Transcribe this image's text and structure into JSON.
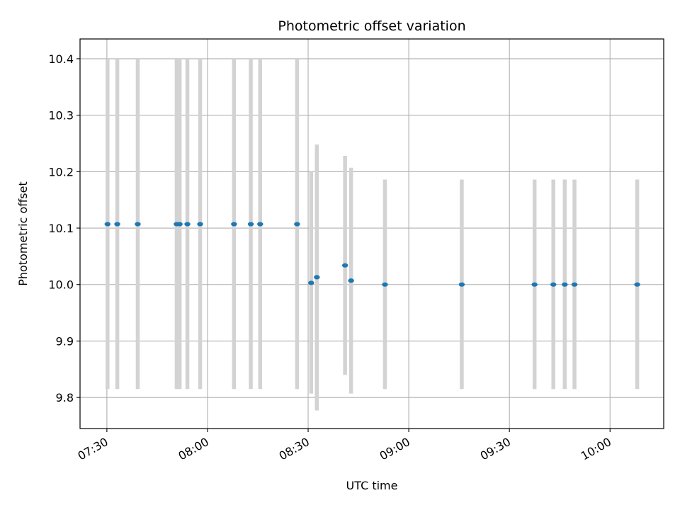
{
  "chart_data": {
    "type": "scatter",
    "title": "Photometric offset variation",
    "xlabel": "UTC time",
    "ylabel": "Photometric offset",
    "grid": true,
    "xlim": [
      "07:22",
      "10:16"
    ],
    "ylim": [
      9.745,
      10.435
    ],
    "x_ticks": [
      "07:30",
      "08:00",
      "08:30",
      "09:00",
      "09:30",
      "10:00"
    ],
    "y_ticks": [
      "9.8",
      "9.9",
      "10.0",
      "10.1",
      "10.2",
      "10.3",
      "10.4"
    ],
    "colors": {
      "points": "#1f77b4",
      "error_bars": "#d3d3d3",
      "grid": "#b0b0b0"
    },
    "points": [
      {
        "x": "07:30:12",
        "y": 10.107,
        "yerr_low": 9.815,
        "yerr_high": 10.4
      },
      {
        "x": "07:33:06",
        "y": 10.107,
        "yerr_low": 9.815,
        "yerr_high": 10.4
      },
      {
        "x": "07:39:12",
        "y": 10.107,
        "yerr_low": 9.815,
        "yerr_high": 10.4
      },
      {
        "x": "07:50:48",
        "y": 10.107,
        "yerr_low": 9.815,
        "yerr_high": 10.4
      },
      {
        "x": "07:51:42",
        "y": 10.107,
        "yerr_low": 9.815,
        "yerr_high": 10.4
      },
      {
        "x": "07:54:00",
        "y": 10.107,
        "yerr_low": 9.815,
        "yerr_high": 10.4
      },
      {
        "x": "07:57:48",
        "y": 10.107,
        "yerr_low": 9.815,
        "yerr_high": 10.4
      },
      {
        "x": "08:07:54",
        "y": 10.107,
        "yerr_low": 9.815,
        "yerr_high": 10.4
      },
      {
        "x": "08:12:54",
        "y": 10.107,
        "yerr_low": 9.815,
        "yerr_high": 10.4
      },
      {
        "x": "08:15:42",
        "y": 10.107,
        "yerr_low": 9.815,
        "yerr_high": 10.4
      },
      {
        "x": "08:26:42",
        "y": 10.107,
        "yerr_low": 9.815,
        "yerr_high": 10.4
      },
      {
        "x": "08:30:54",
        "y": 10.003,
        "yerr_low": 9.807,
        "yerr_high": 10.2
      },
      {
        "x": "08:32:36",
        "y": 10.013,
        "yerr_low": 9.777,
        "yerr_high": 10.248
      },
      {
        "x": "08:41:00",
        "y": 10.034,
        "yerr_low": 9.84,
        "yerr_high": 10.228
      },
      {
        "x": "08:42:48",
        "y": 10.007,
        "yerr_low": 9.807,
        "yerr_high": 10.207
      },
      {
        "x": "08:52:54",
        "y": 10.0,
        "yerr_low": 9.815,
        "yerr_high": 10.186
      },
      {
        "x": "09:15:48",
        "y": 10.0,
        "yerr_low": 9.815,
        "yerr_high": 10.186
      },
      {
        "x": "09:37:30",
        "y": 10.0,
        "yerr_low": 9.815,
        "yerr_high": 10.186
      },
      {
        "x": "09:43:06",
        "y": 10.0,
        "yerr_low": 9.815,
        "yerr_high": 10.186
      },
      {
        "x": "09:46:30",
        "y": 10.0,
        "yerr_low": 9.815,
        "yerr_high": 10.186
      },
      {
        "x": "09:49:24",
        "y": 10.0,
        "yerr_low": 9.815,
        "yerr_high": 10.186
      },
      {
        "x": "10:08:06",
        "y": 10.0,
        "yerr_low": 9.815,
        "yerr_high": 10.186
      }
    ]
  }
}
